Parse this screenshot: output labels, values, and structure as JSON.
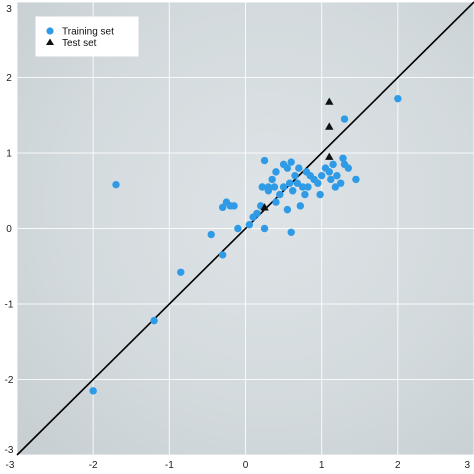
{
  "chart_data": {
    "type": "scatter",
    "title": "",
    "xlabel": "",
    "ylabel": "",
    "xlim": [
      -3,
      3
    ],
    "ylim": [
      -3,
      3
    ],
    "x_ticks": [
      -3,
      -2,
      -1,
      0,
      1,
      2,
      3
    ],
    "y_ticks": [
      -3,
      -2,
      -1,
      0,
      1,
      2,
      3
    ],
    "x_tick_labels": [
      "-3",
      "-2",
      "-1",
      "0",
      "1",
      "2",
      "3"
    ],
    "y_tick_labels": [
      "-3",
      "-2",
      "-1",
      "0",
      "1",
      "2",
      "3"
    ],
    "grid": true,
    "legend_position": "top-left",
    "reference_line": {
      "type": "identity",
      "from": [
        -3,
        -3
      ],
      "to": [
        3,
        3
      ],
      "color": "#000000"
    },
    "series": [
      {
        "name": "Training set",
        "marker": "circle",
        "color": "#2f9be6",
        "points": [
          [
            -2.0,
            -2.15
          ],
          [
            -1.7,
            0.58
          ],
          [
            -1.2,
            -1.22
          ],
          [
            -0.85,
            -0.58
          ],
          [
            -0.45,
            -0.08
          ],
          [
            -0.3,
            -0.35
          ],
          [
            -0.3,
            0.28
          ],
          [
            -0.25,
            0.35
          ],
          [
            -0.2,
            0.3
          ],
          [
            -0.15,
            0.3
          ],
          [
            -0.1,
            0.0
          ],
          [
            0.05,
            0.05
          ],
          [
            0.1,
            0.15
          ],
          [
            0.15,
            0.2
          ],
          [
            0.2,
            0.3
          ],
          [
            0.22,
            0.55
          ],
          [
            0.25,
            0.9
          ],
          [
            0.25,
            0.0
          ],
          [
            0.3,
            0.5
          ],
          [
            0.3,
            0.55
          ],
          [
            0.35,
            0.65
          ],
          [
            0.38,
            0.55
          ],
          [
            0.4,
            0.75
          ],
          [
            0.4,
            0.35
          ],
          [
            0.45,
            0.45
          ],
          [
            0.5,
            0.55
          ],
          [
            0.5,
            0.85
          ],
          [
            0.55,
            0.8
          ],
          [
            0.55,
            0.25
          ],
          [
            0.58,
            0.6
          ],
          [
            0.6,
            0.88
          ],
          [
            0.6,
            -0.05
          ],
          [
            0.62,
            0.5
          ],
          [
            0.65,
            0.7
          ],
          [
            0.68,
            0.6
          ],
          [
            0.7,
            0.8
          ],
          [
            0.72,
            0.3
          ],
          [
            0.75,
            0.55
          ],
          [
            0.78,
            0.45
          ],
          [
            0.8,
            0.75
          ],
          [
            0.82,
            0.55
          ],
          [
            0.85,
            0.7
          ],
          [
            0.9,
            0.65
          ],
          [
            0.95,
            0.6
          ],
          [
            0.98,
            0.45
          ],
          [
            1.0,
            0.7
          ],
          [
            1.05,
            0.8
          ],
          [
            1.1,
            0.75
          ],
          [
            1.12,
            0.65
          ],
          [
            1.15,
            0.85
          ],
          [
            1.18,
            0.55
          ],
          [
            1.2,
            0.7
          ],
          [
            1.25,
            0.6
          ],
          [
            1.28,
            0.93
          ],
          [
            1.3,
            0.85
          ],
          [
            1.35,
            0.8
          ],
          [
            1.45,
            0.65
          ],
          [
            1.3,
            1.45
          ],
          [
            2.0,
            1.72
          ]
        ]
      },
      {
        "name": "Test set",
        "marker": "triangle",
        "color": "#111111",
        "points": [
          [
            0.25,
            0.28
          ],
          [
            1.1,
            1.68
          ],
          [
            1.1,
            1.35
          ],
          [
            1.1,
            0.95
          ]
        ]
      }
    ]
  }
}
